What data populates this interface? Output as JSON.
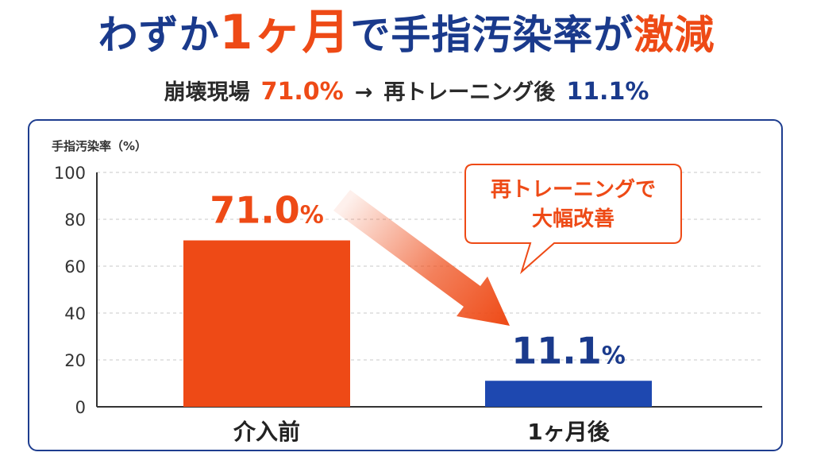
{
  "headline": {
    "part1": "わずか",
    "part2": "1ヶ月",
    "part3": "で手指汚染率が",
    "part4": "激減"
  },
  "subline": {
    "label_before": "崩壊現場",
    "value_before": "71.0%",
    "arrow": "→",
    "label_after": "再トレーニング後",
    "value_after": "11.1%"
  },
  "colors": {
    "accent_red": "#ee4a16",
    "brand_blue": "#1a3a8c",
    "bar_before": "#ee4a16",
    "bar_after": "#1e48b0",
    "panel_border": "#1e3d8f"
  },
  "callout": {
    "line1": "再トレーニングで",
    "line2": "大幅改善"
  },
  "chart_data": {
    "type": "bar",
    "ylabel": "手指汚染率（%）",
    "ylim": [
      0,
      100
    ],
    "yticks": [
      0,
      20,
      40,
      60,
      80,
      100
    ],
    "grid": true,
    "categories": [
      "介入前",
      "1ヶ月後"
    ],
    "values": [
      71.0,
      11.1
    ],
    "value_labels": [
      {
        "number": "71.0",
        "unit": "%"
      },
      {
        "number": "11.1",
        "unit": "%"
      }
    ]
  }
}
